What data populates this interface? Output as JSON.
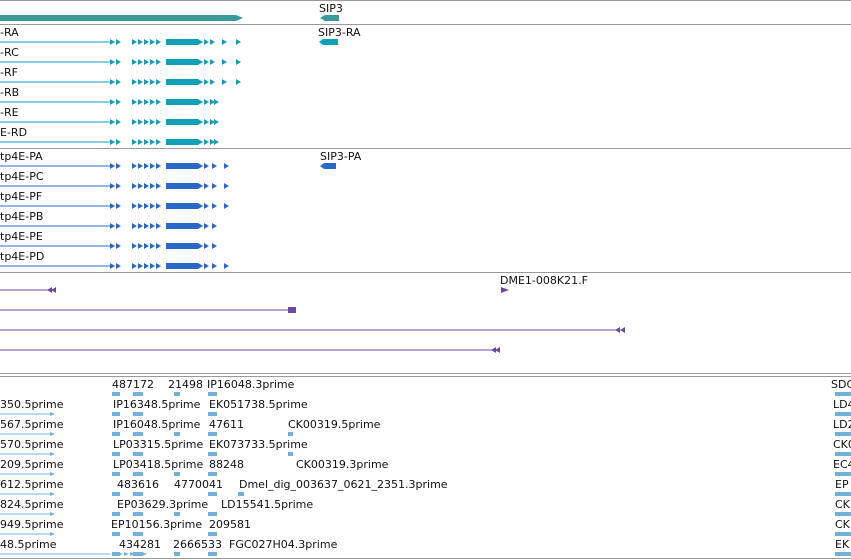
{
  "colors": {
    "gene": "#3a9a9a",
    "transcript_ra": "#129fb8",
    "protein": "#2a68c8",
    "cdna": "#6b49a0",
    "est": "#74b0dc",
    "separator": "#9a9a9a"
  },
  "gene_track": {
    "label": "SIP3"
  },
  "transcript_track": {
    "rows": [
      "-RA",
      "-RC",
      "-RF",
      "-RB",
      "-RE",
      "E-RD"
    ],
    "other_label": "SIP3-RA"
  },
  "protein_track": {
    "rows": [
      "tp4E-PA",
      "tp4E-PC",
      "tp4E-PF",
      "tp4E-PB",
      "tp4E-PE",
      "tp4E-PD"
    ],
    "other_label": "SIP3-PA"
  },
  "cdna_track": {
    "label": "DME1-008K21.F"
  },
  "est_track": {
    "left_labels": [
      "350.5prime",
      "567.5prime",
      "570.5prime",
      "209.5prime",
      "612.5prime",
      "824.5prime",
      "949.5prime",
      "48.5prime"
    ],
    "top_labels": [
      "487172",
      "21498",
      "IP16048.3prime"
    ],
    "row_labels": [
      [
        "IP16348.5prime",
        "EK051738.5prime"
      ],
      [
        "IP16048.5prime",
        "47611",
        "CK00319.5prime"
      ],
      [
        "LP03315.5prime",
        "EK073733.5prime"
      ],
      [
        "LP03418.5prime",
        "88248",
        "CK00319.3prime"
      ],
      [
        "483616",
        "4770041",
        "Dmel_dig_003637_0621_2351.3prime"
      ],
      [
        "EP03629.3prime",
        "LD15541.5prime"
      ],
      [
        "EP10156.3prime",
        "209581"
      ],
      [
        "434281",
        "2666533",
        "FGC027H04.3prime"
      ]
    ],
    "right_labels": [
      "SDC",
      "LD4",
      "LD2",
      "CK0",
      "EC4",
      "EP",
      "CK",
      "CK",
      "EK"
    ]
  }
}
